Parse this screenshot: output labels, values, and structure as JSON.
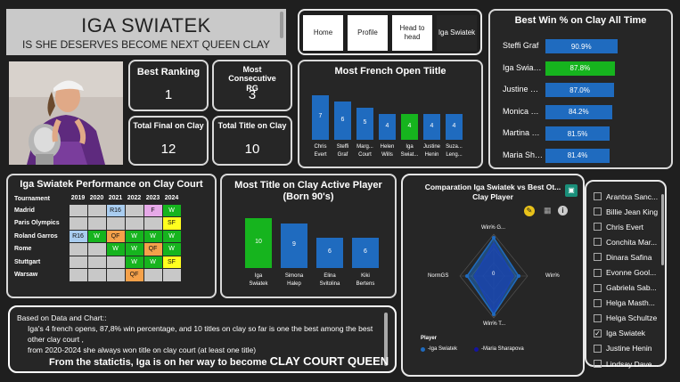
{
  "header": {
    "title": "IGA SWIATEK",
    "subtitle": "IS SHE DESERVES BECOME NEXT QUEEN CLAY"
  },
  "nav": {
    "buttons": [
      "Home",
      "Profile",
      "Head to head",
      "Iga Swiatek"
    ]
  },
  "kpis": [
    {
      "label": "Best Ranking",
      "value": "1"
    },
    {
      "label": "Most Consecutive RG",
      "value": "3"
    },
    {
      "label": "Total Final on Clay",
      "value": "12"
    },
    {
      "label": "Total Title on Clay",
      "value": "10"
    }
  ],
  "french_open": {
    "title": "Most French Open Tiitle",
    "bars": [
      {
        "label": [
          "Chris",
          "Evert"
        ],
        "value": "7",
        "color": "#1f6bbf"
      },
      {
        "label": [
          "Steffi",
          "Graf"
        ],
        "value": "6",
        "color": "#1f6bbf"
      },
      {
        "label": [
          "Marg...",
          "Court"
        ],
        "value": "5",
        "color": "#1f6bbf"
      },
      {
        "label": [
          "Helen",
          "Wills"
        ],
        "value": "4",
        "color": "#1f6bbf"
      },
      {
        "label": [
          "Iga",
          "Swiat..."
        ],
        "value": "4",
        "color": "#16b41e"
      },
      {
        "label": [
          "Justine",
          "Henin"
        ],
        "value": "4",
        "color": "#1f6bbf"
      },
      {
        "label": [
          "Suza...",
          "Leng..."
        ],
        "value": "4",
        "color": "#1f6bbf"
      }
    ]
  },
  "winpct": {
    "title": "Best Win % on Clay All Time",
    "rows": [
      {
        "name": "Steffi Graf",
        "value": "90.9%",
        "num": 90.9,
        "color": "#1f6bbf"
      },
      {
        "name": "Iga Swiatek",
        "value": "87.8%",
        "num": 87.8,
        "color": "#16b41e"
      },
      {
        "name": "Justine Henin",
        "value": "87.0%",
        "num": 87.0,
        "color": "#1f6bbf"
      },
      {
        "name": "Monica Seles",
        "value": "84.2%",
        "num": 84.2,
        "color": "#1f6bbf"
      },
      {
        "name": "Martina Navratilova",
        "value": "81.5%",
        "num": 81.5,
        "color": "#1f6bbf"
      },
      {
        "name": "Maria Sharapova",
        "value": "81.4%",
        "num": 81.4,
        "color": "#1f6bbf"
      }
    ]
  },
  "performance": {
    "title": "Iga Swiatek Performance on Clay Court",
    "col_header": "Tournament",
    "years": [
      "2019",
      "2020",
      "2021",
      "2022",
      "2023",
      "2024"
    ],
    "rows": [
      {
        "name": "Madrid",
        "cells": [
          [
            "",
            ""
          ],
          [
            "",
            ""
          ],
          [
            "R16",
            "blue"
          ],
          [
            "",
            ""
          ],
          [
            "F",
            "pink"
          ],
          [
            "W",
            "green"
          ]
        ]
      },
      {
        "name": "Paris Olympics",
        "cells": [
          [
            "",
            ""
          ],
          [
            "",
            ""
          ],
          [
            "",
            ""
          ],
          [
            "",
            ""
          ],
          [
            "",
            ""
          ],
          [
            "SF",
            "yellow"
          ]
        ]
      },
      {
        "name": "Roland Garros",
        "cells": [
          [
            "R16",
            "blue"
          ],
          [
            "W",
            "green"
          ],
          [
            "QF",
            "orange"
          ],
          [
            "W",
            "green"
          ],
          [
            "W",
            "green"
          ],
          [
            "W",
            "green"
          ]
        ]
      },
      {
        "name": "Rome",
        "cells": [
          [
            "",
            ""
          ],
          [
            "",
            ""
          ],
          [
            "W",
            "green"
          ],
          [
            "W",
            "green"
          ],
          [
            "QF",
            "orange"
          ],
          [
            "W",
            "green"
          ]
        ]
      },
      {
        "name": "Stuttgart",
        "cells": [
          [
            "",
            ""
          ],
          [
            "",
            ""
          ],
          [
            "",
            ""
          ],
          [
            "W",
            "green"
          ],
          [
            "W",
            "green"
          ],
          [
            "SF",
            "yellow"
          ]
        ]
      },
      {
        "name": "Warsaw",
        "cells": [
          [
            "",
            ""
          ],
          [
            "",
            ""
          ],
          [
            "",
            ""
          ],
          [
            "QF",
            "orange"
          ],
          [
            "",
            ""
          ],
          [
            "",
            ""
          ]
        ]
      }
    ]
  },
  "active": {
    "title": [
      "Most Title on Clay Active Player",
      "(Born 90's)"
    ],
    "bars": [
      {
        "label": [
          "Iga",
          "Swiatek"
        ],
        "value": "10",
        "num": 10,
        "color": "#16b41e"
      },
      {
        "label": [
          "Simona",
          "Halep"
        ],
        "value": "9",
        "num": 9,
        "color": "#1f6bbf"
      },
      {
        "label": [
          "Elina",
          "Svitolina"
        ],
        "value": "6",
        "num": 6,
        "color": "#1f6bbf"
      },
      {
        "label": [
          "Kiki",
          "Bertens"
        ],
        "value": "6",
        "num": 6,
        "color": "#1f6bbf"
      }
    ]
  },
  "radar": {
    "title": "Comparation Iga Swiatek vs Best Ot... Clay Player",
    "axes": {
      "top": "Win% G...",
      "right": "Win%",
      "bottom": "Win% T...",
      "left": "NormGS"
    },
    "center_value": "0",
    "legend_title": "Player",
    "legend": [
      {
        "name": "Iga Swiatek",
        "color": "#1f6bbf"
      },
      {
        "name": "Maria Sharapova",
        "color": "#1414a0"
      }
    ]
  },
  "slicer": {
    "items": [
      {
        "name": "Arantxa Sanc...",
        "checked": false
      },
      {
        "name": "Billie Jean King",
        "checked": false
      },
      {
        "name": "Chris Evert",
        "checked": false
      },
      {
        "name": "Conchita Mar...",
        "checked": false
      },
      {
        "name": "Dinara Safina",
        "checked": false
      },
      {
        "name": "Evonne Gool...",
        "checked": false
      },
      {
        "name": "Gabriela Sab...",
        "checked": false
      },
      {
        "name": "Helga Masth...",
        "checked": false
      },
      {
        "name": "Helga Schultze",
        "checked": false
      },
      {
        "name": "Iga Swiatek",
        "checked": true
      },
      {
        "name": "Justine Henin",
        "checked": false
      },
      {
        "name": "Lindsay Dave...",
        "checked": false
      }
    ]
  },
  "note": {
    "intro": "Based on Data and Chart::",
    "line1": "Iga's 4 french opens, 87,8% win percentage, and 10 titles on clay so far is one the best among the best other clay court ,",
    "line2": "from 2020-2024 she always won title on clay court (at least one title)",
    "line3a": "From the statictis, Iga is on her way to become ",
    "line3b": "CLAY COURT QUEEN"
  }
}
